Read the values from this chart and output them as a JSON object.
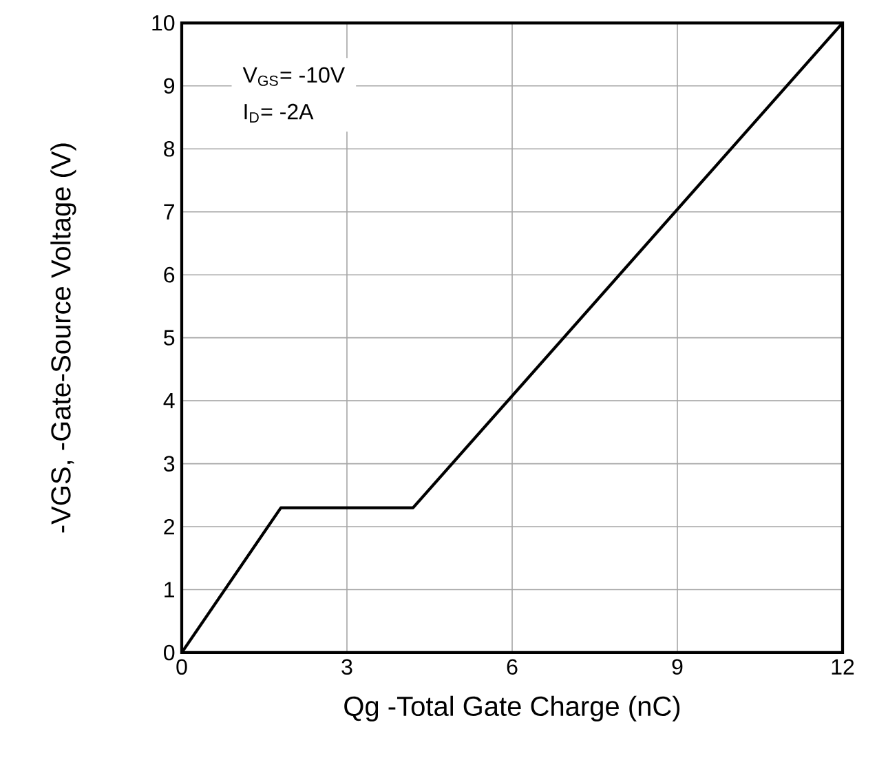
{
  "chart_data": {
    "type": "line",
    "xlabel": "Qg -Total Gate Charge (nC)",
    "ylabel": "-VGS, -Gate-Source Voltage (V)",
    "annotations": [
      "V$_{GS}$= -10V",
      "I$_{D}$= -2A"
    ],
    "x": [
      0,
      1.8,
      4.2,
      12
    ],
    "series": [
      {
        "color": "#000000",
        "values": [
          0,
          2.3,
          2.3,
          10
        ]
      }
    ],
    "xlim": [
      0,
      12
    ],
    "xticks": [
      0,
      3,
      6,
      9,
      12
    ],
    "ylim": [
      0,
      10
    ],
    "yticks": [
      0,
      1,
      2,
      3,
      4,
      5,
      6,
      7,
      8,
      9,
      10
    ],
    "grid": true,
    "marker": "none",
    "line_style": "solid"
  }
}
